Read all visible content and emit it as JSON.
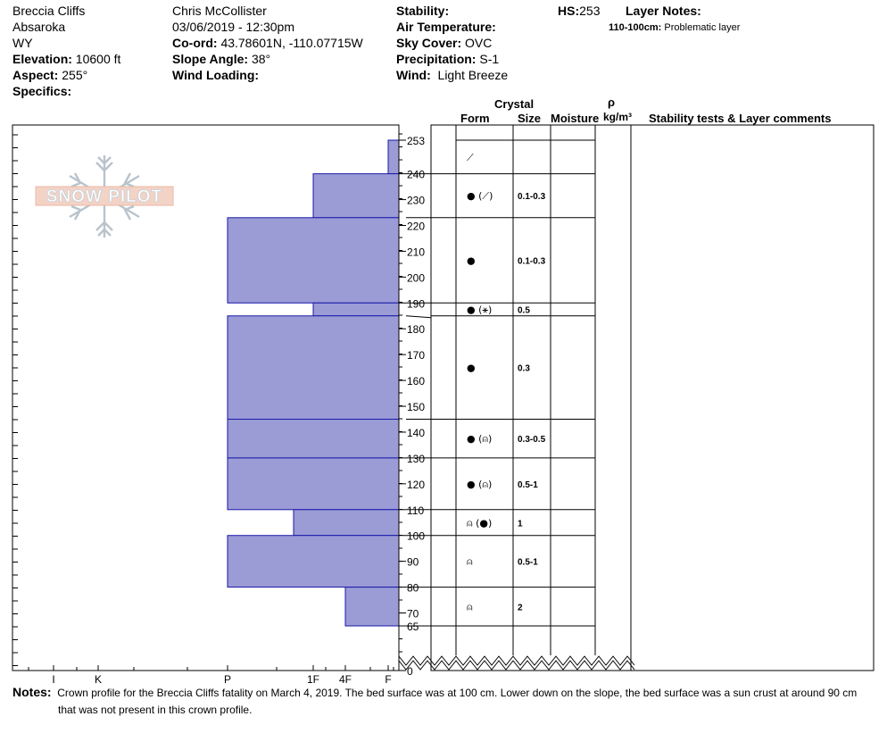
{
  "header": {
    "location": "Breccia Cliffs",
    "range": "Absaroka",
    "state": "WY",
    "elevation_label": "Elevation:",
    "elevation_value": "10600 ft",
    "aspect_label": "Aspect:",
    "aspect_value": "255°",
    "specifics_label": "Specifics:",
    "observer": "Chris McCollister",
    "datetime": "03/06/2019 - 12:30pm",
    "coord_label": "Co-ord:",
    "coord_value": "43.78601N, -110.07715W",
    "slope_label": "Slope Angle:",
    "slope_value": "38°",
    "wind_loading_label": "Wind Loading:",
    "stability_label": "Stability:",
    "air_temp_label": "Air Temperature:",
    "sky_label": "Sky Cover:",
    "sky_value": "OVC",
    "precip_label": "Precipitation:",
    "precip_value": "S-1",
    "wind_label": "Wind:",
    "wind_value": "Light Breeze",
    "hs_label": "HS:",
    "hs_value": "253",
    "layer_notes_label": "Layer Notes:",
    "layer_note_range": "110-100cm:",
    "layer_note_text": "Problematic layer"
  },
  "logo_text": "SNOW PILOT",
  "columns": {
    "crystal": "Crystal",
    "form": "Form",
    "size": "Size",
    "moisture": "Moisture",
    "density_symbol": "ρ",
    "density_unit": "kg/m³",
    "stability_comments": "Stability tests & Layer comments"
  },
  "notes": {
    "label": "Notes:",
    "line1": "Crown profile for the Breccia Cliffs fatality on March 4, 2019. The bed surface was at 100 cm. Lower down on the slope, the bed surface was a sun crust at around 90 cm",
    "line2": "that was not present in this crown profile."
  },
  "colors": {
    "layer_fill": "#9b9bd6",
    "layer_stroke": "#1a1aa8"
  },
  "chart_data": {
    "type": "snow-profile",
    "height_axis": {
      "ticks": [
        "253",
        "240",
        "230",
        "220",
        "210",
        "200",
        "190",
        "180",
        "170",
        "160",
        "150",
        "140",
        "130",
        "120",
        "110",
        "100",
        "90",
        "80",
        "70",
        "65",
        "0"
      ],
      "unit": "cm",
      "range": [
        0,
        253
      ]
    },
    "hardness_axis": {
      "ticks": [
        "I",
        "K",
        "P",
        "1F",
        "4F",
        "F"
      ]
    },
    "layers": [
      {
        "top": 253,
        "bottom": 240,
        "hardness": "F",
        "form": "⟋",
        "size": ""
      },
      {
        "top": 240,
        "bottom": 223,
        "hardness": "1F",
        "form": "● (⟋)",
        "size": "0.1-0.3"
      },
      {
        "top": 223,
        "bottom": 190,
        "hardness": "P",
        "form": "●",
        "size": "0.1-0.3"
      },
      {
        "top": 190,
        "bottom": 185,
        "hardness": "1F",
        "form": "● (⚹)",
        "size": "0.5"
      },
      {
        "top": 185,
        "bottom": 145,
        "hardness": "P",
        "form": "●",
        "size": "0.3"
      },
      {
        "top": 145,
        "bottom": 130,
        "hardness": "P",
        "form": "● (⍝)",
        "size": "0.3-0.5"
      },
      {
        "top": 130,
        "bottom": 110,
        "hardness": "P",
        "form": "● (⍝)",
        "size": "0.5-1"
      },
      {
        "top": 110,
        "bottom": 100,
        "hardness": "1F-",
        "form": "⍝ (●)",
        "size": "1"
      },
      {
        "top": 100,
        "bottom": 80,
        "hardness": "P",
        "form": "⍝",
        "size": "0.5-1"
      },
      {
        "top": 80,
        "bottom": 65,
        "hardness": "4F",
        "form": "⍝",
        "size": "2"
      }
    ]
  }
}
